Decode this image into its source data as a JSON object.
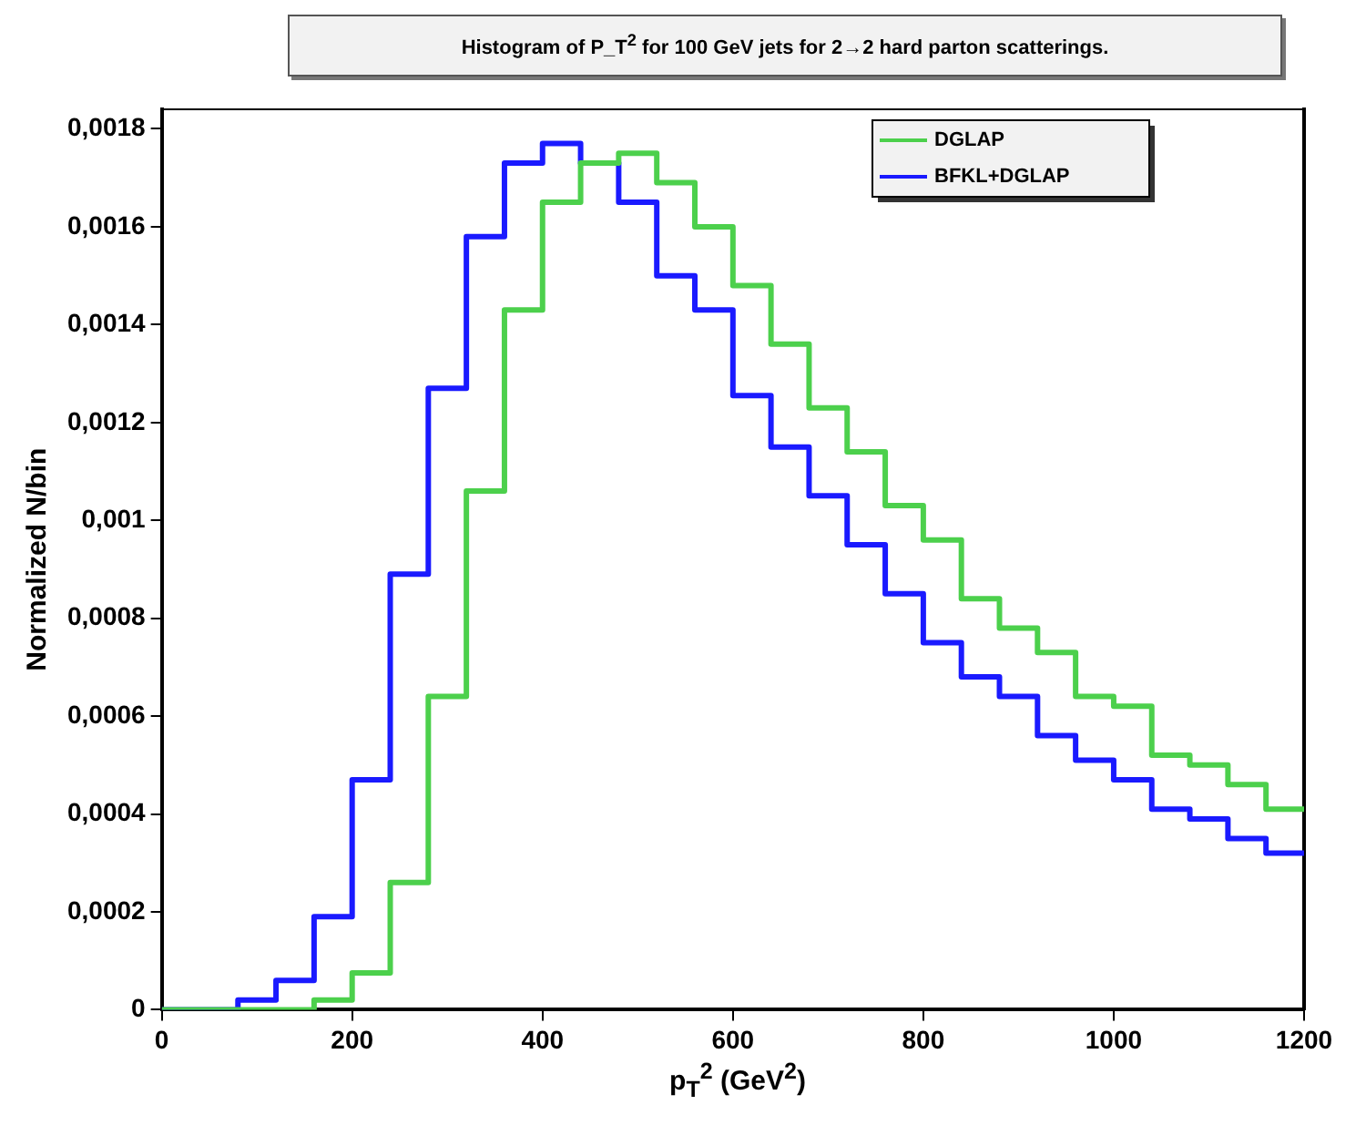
{
  "chart_data": {
    "type": "histogram",
    "title": "Histogram of P_T$^{2}$ for 100 GeV jets for 2→2 hard parton scatterings.",
    "xlabel": "p$_{T}$$^{2}$ (GeV$^{2}$)",
    "ylabel": "Normalized N/bin",
    "bins": [
      0,
      40,
      80,
      120,
      160,
      200,
      240,
      280,
      320,
      360,
      400,
      440,
      480,
      520,
      560,
      600,
      640,
      680,
      720,
      760,
      800,
      840,
      880,
      920,
      960,
      1000,
      1040,
      1080,
      1120,
      1160,
      1200
    ],
    "series": [
      {
        "name": "DGLAP",
        "color": "#4cd04c",
        "values": [
          0,
          0,
          0,
          0,
          2e-05,
          7.5e-05,
          0.00026,
          0.00064,
          0.00106,
          0.00143,
          0.00165,
          0.00173,
          0.00175,
          0.00169,
          0.0016,
          0.00148,
          0.00136,
          0.00123,
          0.00114,
          0.00103,
          0.00096,
          0.00084,
          0.00078,
          0.00073,
          0.00064,
          0.00062,
          0.00052,
          0.0005,
          0.00046,
          0.00041
        ]
      },
      {
        "name": "BFKL+DGLAP",
        "color": "#1a1aff",
        "values": [
          0,
          0,
          2e-05,
          6e-05,
          0.00019,
          0.00047,
          0.00089,
          0.00127,
          0.00158,
          0.00173,
          0.00177,
          0.00173,
          0.00165,
          0.0015,
          0.00143,
          0.001255,
          0.00115,
          0.00105,
          0.00095,
          0.00085,
          0.00075,
          0.00068,
          0.00064,
          0.00056,
          0.00051,
          0.00047,
          0.00041,
          0.00039,
          0.00035,
          0.00032
        ]
      }
    ],
    "xlim": [
      0,
      1200
    ],
    "xticks": [
      0,
      200,
      400,
      600,
      800,
      1000,
      1200
    ],
    "ylim": [
      0,
      0.00184
    ],
    "yticks": [
      {
        "value": 0,
        "label": "0"
      },
      {
        "value": 0.0002,
        "label": "0,0002"
      },
      {
        "value": 0.0004,
        "label": "0,0004"
      },
      {
        "value": 0.0006,
        "label": "0,0006"
      },
      {
        "value": 0.0008,
        "label": "0,0008"
      },
      {
        "value": 0.001,
        "label": "0,001"
      },
      {
        "value": 0.0012,
        "label": "0,0012"
      },
      {
        "value": 0.0014,
        "label": "0,0014"
      },
      {
        "value": 0.0016,
        "label": "0,0016"
      },
      {
        "value": 0.0018,
        "label": "0,0018"
      }
    ],
    "grid": false,
    "legend": "top right"
  }
}
